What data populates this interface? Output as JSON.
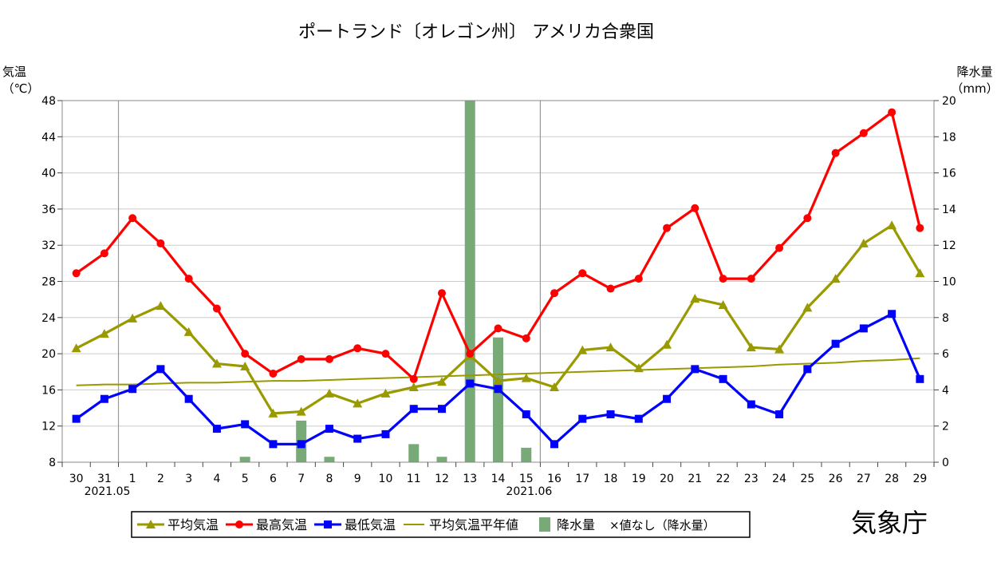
{
  "chart_data": {
    "type": "line",
    "title": "ポートランド〔オレゴン州〕 アメリカ合衆国",
    "left_axis_label": [
      "気温",
      "（℃）"
    ],
    "right_axis_label": [
      "降水量",
      "（mm）"
    ],
    "temp_ylim": [
      8,
      48
    ],
    "temp_ticks": [
      8,
      12,
      16,
      20,
      24,
      28,
      32,
      36,
      40,
      44,
      48
    ],
    "precip_ylim": [
      0,
      20
    ],
    "precip_ticks": [
      0,
      2,
      4,
      6,
      8,
      10,
      12,
      14,
      16,
      18,
      20
    ],
    "days": [
      "30",
      "31",
      "1",
      "2",
      "3",
      "4",
      "5",
      "6",
      "7",
      "8",
      "9",
      "10",
      "11",
      "12",
      "13",
      "14",
      "15",
      "16",
      "17",
      "18",
      "19",
      "20",
      "21",
      "22",
      "23",
      "24",
      "25",
      "26",
      "27",
      "28",
      "29"
    ],
    "month_labels": [
      {
        "label": "2021.05",
        "day_index": 1
      },
      {
        "label": "2021.06",
        "day_index": 16
      }
    ],
    "series": [
      {
        "name": "平均気温",
        "color": "#999900",
        "marker": "triangle",
        "values": [
          20.6,
          22.2,
          23.9,
          25.3,
          22.4,
          18.9,
          18.6,
          13.4,
          13.6,
          15.6,
          14.5,
          15.6,
          16.3,
          16.9,
          19.8,
          17.0,
          17.3,
          16.3,
          20.4,
          20.7,
          18.4,
          21.0,
          26.1,
          25.4,
          20.7,
          20.5,
          25.1,
          28.3,
          32.2,
          34.2,
          28.9
        ]
      },
      {
        "name": "最高気温",
        "color": "#ff0000",
        "marker": "circle",
        "values": [
          28.9,
          31.1,
          35.0,
          32.2,
          28.3,
          25.0,
          20.0,
          17.8,
          19.4,
          19.4,
          20.6,
          20.0,
          17.2,
          26.7,
          20.0,
          22.8,
          21.7,
          26.7,
          28.9,
          27.2,
          28.3,
          33.9,
          36.1,
          28.3,
          28.3,
          31.7,
          35.0,
          42.2,
          44.4,
          46.7,
          33.9
        ]
      },
      {
        "name": "最低気温",
        "color": "#0000ff",
        "marker": "square",
        "values": [
          12.8,
          15.0,
          16.1,
          18.3,
          15.0,
          11.7,
          12.2,
          10.0,
          10.0,
          11.7,
          10.6,
          11.1,
          13.9,
          13.9,
          16.7,
          16.1,
          13.3,
          10.0,
          12.8,
          13.3,
          12.8,
          15.0,
          18.3,
          17.2,
          14.4,
          13.3,
          18.3,
          21.1,
          22.8,
          24.4,
          17.2
        ]
      },
      {
        "name": "平均気温平年値",
        "color": "#999900",
        "marker": "none",
        "values": [
          16.5,
          16.6,
          16.6,
          16.7,
          16.8,
          16.8,
          16.9,
          17.0,
          17.0,
          17.1,
          17.2,
          17.3,
          17.4,
          17.5,
          17.6,
          17.7,
          17.8,
          17.9,
          18.0,
          18.1,
          18.2,
          18.3,
          18.4,
          18.5,
          18.6,
          18.8,
          18.9,
          19.0,
          19.2,
          19.3,
          19.5
        ]
      }
    ],
    "precipitation": {
      "name": "降水量",
      "color": "#77aa77",
      "values": [
        0,
        0,
        0,
        0,
        0,
        0,
        0.3,
        0,
        2.3,
        0.3,
        0,
        0,
        1.0,
        0.3,
        20.0,
        6.9,
        0.8,
        0,
        0,
        0,
        0,
        0,
        0,
        0,
        0,
        0,
        0,
        0,
        0,
        0,
        0
      ]
    },
    "legend": [
      {
        "label": "平均気温",
        "type": "triangle",
        "color": "#999900"
      },
      {
        "label": "最高気温",
        "type": "circle",
        "color": "#ff0000"
      },
      {
        "label": "最低気温",
        "type": "square",
        "color": "#0000ff"
      },
      {
        "label": "平均気温平年値",
        "type": "line",
        "color": "#999900"
      },
      {
        "label": "降水量",
        "type": "bar",
        "color": "#77aa77"
      },
      {
        "label": "×値なし（降水量）",
        "type": "text",
        "color": "#000000"
      }
    ],
    "legend_position": "bottom",
    "source": "気象庁"
  }
}
